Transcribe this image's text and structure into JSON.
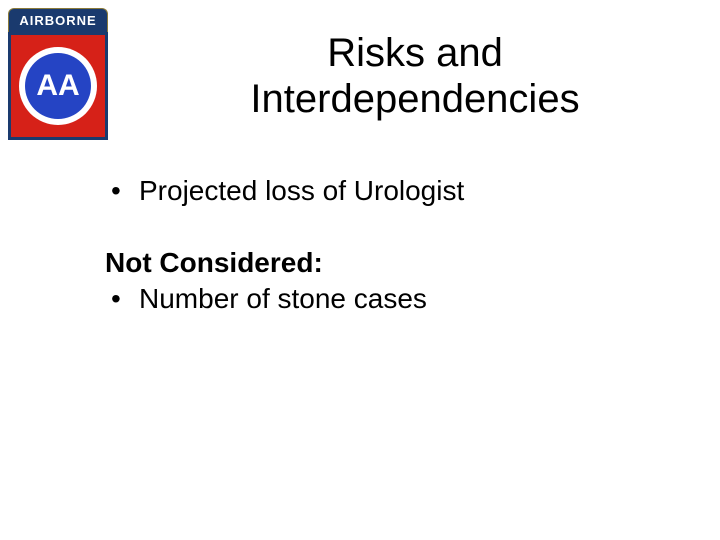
{
  "logo": {
    "tab_text": "AIRBORNE",
    "monogram": "AA",
    "colors": {
      "tab_bg": "#1a3a6e",
      "patch_bg": "#d62118",
      "patch_border": "#1a3a6e",
      "outer_circle": "#ffffff",
      "inner_circle": "#2544c4",
      "monogram_text": "#ffffff"
    }
  },
  "title": {
    "line1": "Risks and",
    "line2": "Interdependencies"
  },
  "bullets": {
    "item1": "Projected loss of Urologist"
  },
  "subhead": "Not Considered:",
  "sub_bullets": {
    "item1": "Number of stone cases"
  },
  "style": {
    "background": "#ffffff",
    "title_fontsize": 40,
    "body_fontsize": 28,
    "text_color": "#000000"
  }
}
